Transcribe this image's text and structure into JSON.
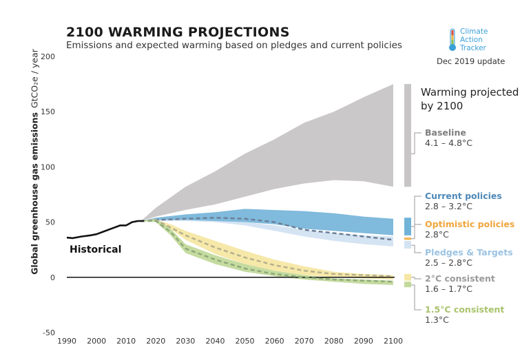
{
  "title": "2100 WARMING PROJECTIONS",
  "subtitle": "Emissions and expected warming based on pledges and current policies",
  "brand": {
    "line1": "Climate",
    "line2": "Action",
    "line3": "Tracker"
  },
  "update": "Dec 2019 update",
  "warming_title": "Warming projected by 2100",
  "historical_label": "Historical",
  "chart_data": {
    "type": "area",
    "xlabel": "",
    "ylabel": "Global greenhouse gas emissions",
    "ylabel_unit": "GtCO₂e / year",
    "xlim": [
      1990,
      2100
    ],
    "ylim": [
      -50,
      200
    ],
    "x_ticks": [
      1990,
      2000,
      2010,
      2020,
      2030,
      2040,
      2050,
      2060,
      2070,
      2080,
      2090,
      2100
    ],
    "y_ticks": [
      -50,
      0,
      50,
      100,
      150,
      200
    ],
    "historical": {
      "x": [
        1990,
        1992,
        1995,
        1998,
        2000,
        2003,
        2005,
        2008,
        2010,
        2012,
        2014,
        2016
      ],
      "y": [
        36,
        35.5,
        37,
        38,
        39,
        42,
        44,
        47,
        47,
        50,
        51,
        51
      ]
    },
    "bands": [
      {
        "key": "baseline",
        "color": "#c8c5c6",
        "x": [
          2015,
          2020,
          2030,
          2040,
          2050,
          2060,
          2070,
          2080,
          2090,
          2100
        ],
        "upper": [
          51,
          63,
          82,
          96,
          112,
          125,
          140,
          150,
          163,
          175
        ],
        "lower": [
          51,
          55,
          61,
          66,
          73,
          80,
          85,
          88,
          87,
          82
        ]
      },
      {
        "key": "pledges",
        "color": "#d3e3f2",
        "x": [
          2015,
          2020,
          2030,
          2040,
          2050,
          2060,
          2070,
          2080,
          2090,
          2100
        ],
        "upper": [
          51,
          52,
          53,
          52,
          50,
          47,
          43,
          40,
          38,
          37
        ],
        "lower": [
          51,
          51,
          51,
          50,
          47,
          42,
          37,
          33,
          30,
          28
        ]
      },
      {
        "key": "current",
        "color": "#72b3d8",
        "x": [
          2015,
          2020,
          2030,
          2040,
          2050,
          2060,
          2070,
          2080,
          2090,
          2100
        ],
        "upper": [
          51,
          54,
          57,
          59,
          62,
          61,
          60,
          58,
          55,
          53
        ],
        "lower": [
          51,
          52,
          52,
          51,
          50,
          48,
          44,
          42,
          40,
          38
        ]
      },
      {
        "key": "two_c",
        "color": "#f5e7a4",
        "x": [
          2015,
          2020,
          2025,
          2030,
          2040,
          2050,
          2060,
          2070,
          2080,
          2090,
          2100
        ],
        "upper": [
          51,
          52,
          48,
          42,
          33,
          24,
          16,
          10,
          5,
          3,
          2
        ],
        "lower": [
          51,
          51,
          44,
          34,
          21,
          12,
          6,
          2,
          0,
          -1,
          -2
        ]
      },
      {
        "key": "one_five_c",
        "color": "#c2d99b",
        "x": [
          2015,
          2020,
          2025,
          2030,
          2040,
          2050,
          2060,
          2070,
          2080,
          2090,
          2100
        ],
        "upper": [
          51,
          53,
          44,
          30,
          20,
          12,
          6,
          2,
          -1,
          -2,
          -3
        ],
        "lower": [
          51,
          50,
          38,
          22,
          12,
          5,
          1,
          -2,
          -4,
          -6,
          -7
        ]
      }
    ],
    "dashed_lines": [
      {
        "key": "current_median",
        "color": "#6b7f97",
        "x": [
          2015,
          2020,
          2030,
          2040,
          2050,
          2060,
          2070,
          2080,
          2090,
          2100
        ],
        "y": [
          51,
          52,
          53,
          54,
          53,
          50,
          43,
          40,
          37,
          34
        ]
      },
      {
        "key": "two_c_median",
        "color": "#b6b08d",
        "x": [
          2015,
          2020,
          2025,
          2030,
          2040,
          2050,
          2060,
          2070,
          2080,
          2090,
          2100
        ],
        "y": [
          51,
          52,
          45,
          38,
          27,
          18,
          11,
          6,
          3,
          2,
          1
        ]
      },
      {
        "key": "one_five_c_median",
        "color": "#8ea87a",
        "x": [
          2015,
          2020,
          2025,
          2030,
          2040,
          2050,
          2060,
          2070,
          2080,
          2090,
          2100
        ],
        "y": [
          51,
          51,
          41,
          26,
          16,
          8,
          3,
          0,
          -2,
          -3,
          -4
        ]
      }
    ],
    "bars_2100": [
      {
        "key": "baseline",
        "color": "#c8c5c6",
        "lower": 82,
        "upper": 175
      },
      {
        "key": "current",
        "color": "#72b3d8",
        "lower": 38,
        "upper": 54
      },
      {
        "key": "optimistic",
        "color": "#f5b24e",
        "lower": 34,
        "upper": 36
      },
      {
        "key": "pledges",
        "color": "#d3e3f2",
        "lower": 26,
        "upper": 33
      },
      {
        "key": "two_c",
        "color": "#f5e7a4",
        "lower": -3,
        "upper": 3
      },
      {
        "key": "one_five_c",
        "color": "#c2d99b",
        "lower": -9,
        "upper": -4
      }
    ],
    "legend": [
      {
        "key": "baseline",
        "name": "Baseline",
        "range": "4.1 – 4.8°C",
        "color": "#7e7e7e",
        "connector": 112
      },
      {
        "key": "current",
        "name": "Current policies",
        "range": "2.8 – 3.2°C",
        "color": "#4e89b8",
        "connector": 46
      },
      {
        "key": "optimistic",
        "name": "Optimistic policies",
        "range": "2.8°C",
        "color": "#f1a53d",
        "connector": 35
      },
      {
        "key": "pledges",
        "name": "Pledges & Targets",
        "range": "2.5 – 2.8°C",
        "color": "#9cc3e4",
        "connector": 29
      },
      {
        "key": "two_c",
        "name": "2°C consistent",
        "range": "1.6 – 1.7°C",
        "color": "#9a9a9a",
        "connector": 0
      },
      {
        "key": "one_five_c",
        "name": "1.5°C consistent",
        "range": "1.3°C",
        "color": "#a9c36b",
        "connector": -7
      }
    ]
  }
}
